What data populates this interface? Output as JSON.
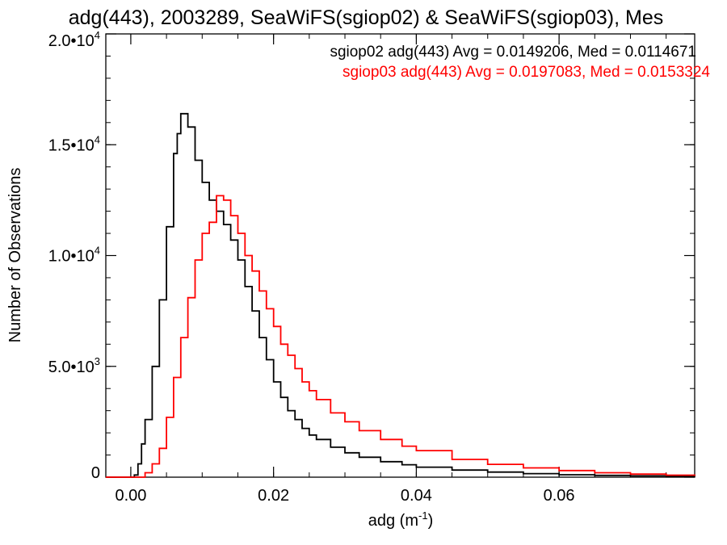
{
  "chart_data": {
    "type": "line",
    "title": "adg(443), 2003289, SeaWiFS(sgiop02) & SeaWiFS(sgiop03), Mes",
    "xlabel": "adg (m",
    "xlabel_sup": "-1",
    "xlabel_close": ")",
    "ylabel": "Number of Observations",
    "xlim": [
      -0.0035,
      0.079
    ],
    "ylim": [
      0,
      20000
    ],
    "x_ticks": [
      {
        "value": 0.0,
        "label": "0.00"
      },
      {
        "value": 0.02,
        "label": "0.02"
      },
      {
        "value": 0.04,
        "label": "0.04"
      },
      {
        "value": 0.06,
        "label": "0.06"
      }
    ],
    "y_ticks": [
      {
        "value": 0,
        "base": "0",
        "sup": ""
      },
      {
        "value": 5000,
        "base": "5.0•10",
        "sup": "3"
      },
      {
        "value": 10000,
        "base": "1.0•10",
        "sup": "4"
      },
      {
        "value": 15000,
        "base": "1.5•10",
        "sup": "4"
      },
      {
        "value": 20000,
        "base": "2.0•10",
        "sup": "4"
      }
    ],
    "x_minor_step": 0.005,
    "y_minor_step": 1000,
    "grid": false,
    "legend_position": "top-right",
    "series": [
      {
        "name": "sgiop02 adg(443) Avg = 0.0149206, Med = 0.0114671",
        "color": "#000000",
        "x": [
          -0.0035,
          0.0,
          0.0005,
          0.001,
          0.0015,
          0.002,
          0.003,
          0.004,
          0.005,
          0.006,
          0.0065,
          0.007,
          0.008,
          0.009,
          0.01,
          0.011,
          0.012,
          0.013,
          0.014,
          0.015,
          0.016,
          0.017,
          0.018,
          0.019,
          0.02,
          0.021,
          0.022,
          0.023,
          0.024,
          0.025,
          0.026,
          0.028,
          0.03,
          0.032,
          0.035,
          0.038,
          0.04,
          0.045,
          0.05,
          0.055,
          0.06,
          0.065,
          0.07,
          0.075,
          0.079
        ],
        "y": [
          0,
          0,
          100,
          600,
          1500,
          2600,
          5000,
          8000,
          11300,
          14600,
          15500,
          16400,
          15800,
          14300,
          13300,
          12500,
          12000,
          11400,
          10700,
          9800,
          8600,
          7500,
          6300,
          5300,
          4300,
          3600,
          3000,
          2600,
          2200,
          1900,
          1700,
          1350,
          1100,
          900,
          700,
          560,
          450,
          320,
          230,
          160,
          110,
          80,
          60,
          40,
          30
        ]
      },
      {
        "name": "sgiop03 adg(443) Avg = 0.0197083, Med = 0.0153324",
        "color": "#ff0000",
        "x": [
          -0.0035,
          0.001,
          0.002,
          0.003,
          0.004,
          0.005,
          0.006,
          0.007,
          0.008,
          0.009,
          0.01,
          0.011,
          0.012,
          0.013,
          0.014,
          0.015,
          0.016,
          0.017,
          0.018,
          0.019,
          0.02,
          0.021,
          0.022,
          0.023,
          0.024,
          0.025,
          0.026,
          0.028,
          0.03,
          0.032,
          0.035,
          0.038,
          0.04,
          0.045,
          0.05,
          0.055,
          0.06,
          0.065,
          0.07,
          0.075,
          0.079
        ],
        "y": [
          0,
          0,
          200,
          600,
          1300,
          2700,
          4500,
          6300,
          8100,
          9800,
          11000,
          11500,
          12700,
          12500,
          11800,
          11000,
          10000,
          9300,
          8400,
          7600,
          6800,
          6000,
          5500,
          4900,
          4300,
          3900,
          3500,
          2900,
          2500,
          2100,
          1700,
          1400,
          1200,
          800,
          580,
          420,
          300,
          200,
          140,
          90,
          60
        ]
      }
    ]
  }
}
